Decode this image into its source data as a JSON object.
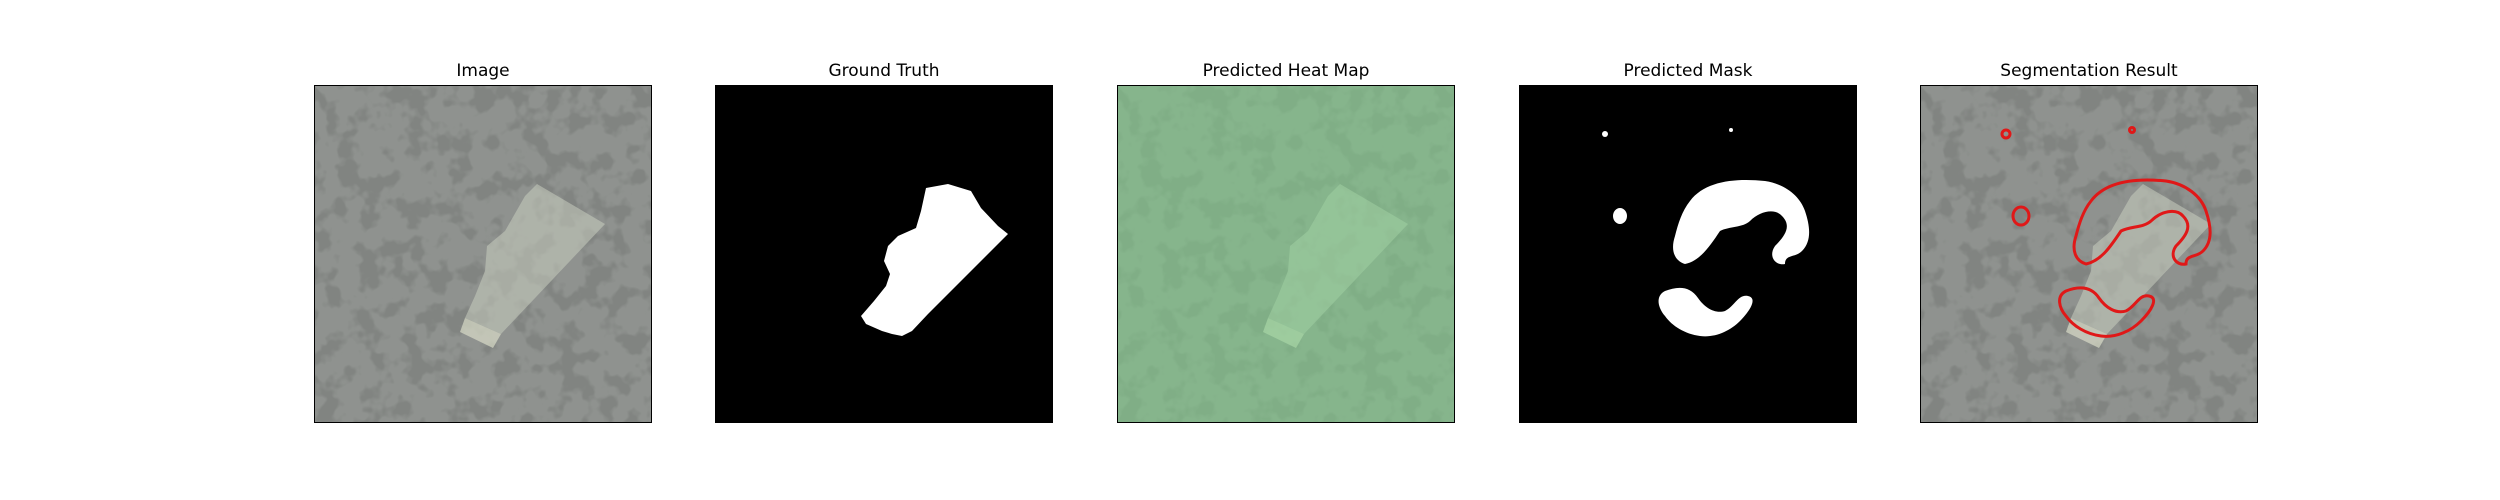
{
  "figure": {
    "panels": [
      {
        "id": "image",
        "title": "Image"
      },
      {
        "id": "ground-truth",
        "title": "Ground Truth"
      },
      {
        "id": "heat-map",
        "title": "Predicted Heat Map"
      },
      {
        "id": "mask",
        "title": "Predicted Mask"
      },
      {
        "id": "segmentation",
        "title": "Segmentation Result"
      }
    ]
  },
  "colors": {
    "background": "#ffffff",
    "texture_base": "#8f928f",
    "texture_dark": "#3a3b3a",
    "patch": "#c9cdbf",
    "mask_bg": "#000000",
    "mask_fg": "#ffffff",
    "heat_tint": "#7fd18a",
    "contour": "#e01818"
  }
}
